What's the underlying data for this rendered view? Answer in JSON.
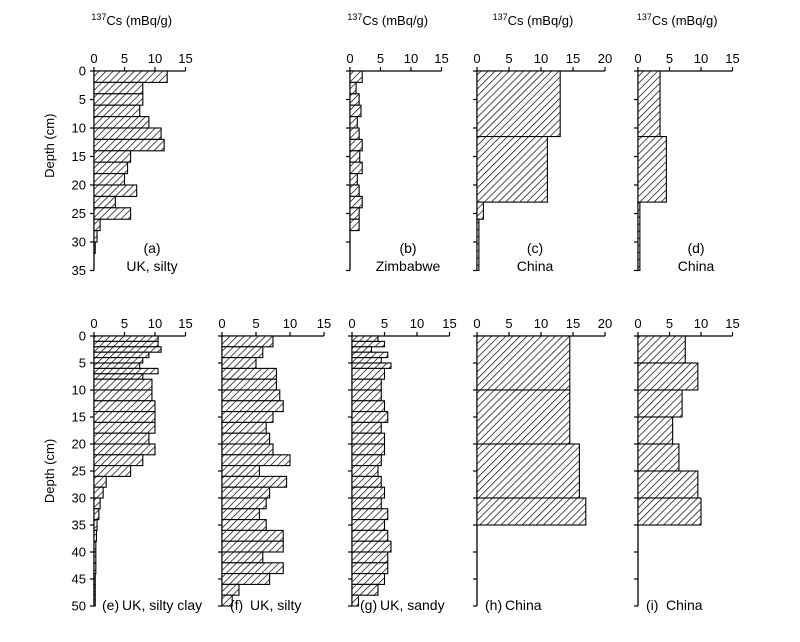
{
  "figure": {
    "colors": {
      "ink": "#000000",
      "fill_pattern": "diagonal-hatch",
      "background": "#ffffff"
    }
  },
  "chart_data": [
    {
      "id": "a",
      "type": "bar",
      "orientation": "horizontal",
      "panel_label": "(a)",
      "caption": "UK, silty",
      "xlabel_html": "137Cs (mBq/g)",
      "xlabel_sup": "137",
      "xlabel_rest": "Cs (mBq/g)",
      "ylabel": "Depth (cm)",
      "xlim": [
        0,
        15
      ],
      "xticks": [
        "0",
        "5",
        "10",
        "15"
      ],
      "ylim": [
        0,
        35
      ],
      "yticks": [
        "0",
        "5",
        "10",
        "15",
        "20",
        "25",
        "30",
        "35"
      ],
      "layers": [
        {
          "top": 0,
          "bottom": 2,
          "value": 12
        },
        {
          "top": 2,
          "bottom": 4,
          "value": 8
        },
        {
          "top": 4,
          "bottom": 6,
          "value": 8
        },
        {
          "top": 6,
          "bottom": 8,
          "value": 7.5
        },
        {
          "top": 8,
          "bottom": 10,
          "value": 9
        },
        {
          "top": 10,
          "bottom": 12,
          "value": 11
        },
        {
          "top": 12,
          "bottom": 14,
          "value": 11.5
        },
        {
          "top": 14,
          "bottom": 16,
          "value": 6
        },
        {
          "top": 16,
          "bottom": 18,
          "value": 5.5
        },
        {
          "top": 18,
          "bottom": 20,
          "value": 5
        },
        {
          "top": 20,
          "bottom": 22,
          "value": 7
        },
        {
          "top": 22,
          "bottom": 24,
          "value": 3.5
        },
        {
          "top": 24,
          "bottom": 26,
          "value": 6
        },
        {
          "top": 26,
          "bottom": 28,
          "value": 1
        },
        {
          "top": 28,
          "bottom": 30,
          "value": 0.5
        },
        {
          "top": 30,
          "bottom": 32,
          "value": 0.2
        }
      ]
    },
    {
      "id": "b",
      "type": "bar",
      "orientation": "horizontal",
      "panel_label": "(b)",
      "caption": "Zimbabwe",
      "xlabel_sup": "137",
      "xlabel_rest": "Cs (mBq/g)",
      "ylabel": "",
      "xlim": [
        0,
        15
      ],
      "xticks": [
        "0",
        "5",
        "10",
        "15"
      ],
      "ylim": [
        0,
        35
      ],
      "yticks": [],
      "layers": [
        {
          "top": 0,
          "bottom": 2,
          "value": 2
        },
        {
          "top": 2,
          "bottom": 4,
          "value": 1
        },
        {
          "top": 4,
          "bottom": 6,
          "value": 1.5
        },
        {
          "top": 6,
          "bottom": 8,
          "value": 1.8
        },
        {
          "top": 8,
          "bottom": 10,
          "value": 1.2
        },
        {
          "top": 10,
          "bottom": 12,
          "value": 1.5
        },
        {
          "top": 12,
          "bottom": 14,
          "value": 2
        },
        {
          "top": 14,
          "bottom": 16,
          "value": 1.6
        },
        {
          "top": 16,
          "bottom": 18,
          "value": 2
        },
        {
          "top": 18,
          "bottom": 20,
          "value": 1.2
        },
        {
          "top": 20,
          "bottom": 22,
          "value": 1.5
        },
        {
          "top": 22,
          "bottom": 24,
          "value": 2
        },
        {
          "top": 24,
          "bottom": 26,
          "value": 1.5
        },
        {
          "top": 26,
          "bottom": 28,
          "value": 1.5
        }
      ]
    },
    {
      "id": "c",
      "type": "bar",
      "orientation": "horizontal",
      "panel_label": "(c)",
      "caption": "China",
      "xlabel_sup": "137",
      "xlabel_rest": "Cs (mBq/g)",
      "ylabel": "",
      "xlim": [
        0,
        20
      ],
      "xticks": [
        "0",
        "5",
        "10",
        "15",
        "20"
      ],
      "ylim": [
        0,
        35
      ],
      "yticks": [],
      "layers": [
        {
          "top": 0,
          "bottom": 11.5,
          "value": 13
        },
        {
          "top": 11.5,
          "bottom": 23,
          "value": 11
        },
        {
          "top": 23,
          "bottom": 26,
          "value": 1
        },
        {
          "top": 26,
          "bottom": 35,
          "value": 0.3
        }
      ]
    },
    {
      "id": "d",
      "type": "bar",
      "orientation": "horizontal",
      "panel_label": "(d)",
      "caption": "China",
      "xlabel_sup": "137",
      "xlabel_rest": "Cs (mBq/g)",
      "ylabel": "",
      "xlim": [
        0,
        15
      ],
      "xticks": [
        "0",
        "5",
        "10",
        "15"
      ],
      "ylim": [
        0,
        35
      ],
      "yticks": [],
      "layers": [
        {
          "top": 0,
          "bottom": 11.5,
          "value": 3.5
        },
        {
          "top": 11.5,
          "bottom": 23,
          "value": 4.5
        },
        {
          "top": 23,
          "bottom": 35,
          "value": 0.3
        }
      ]
    },
    {
      "id": "e",
      "type": "bar",
      "orientation": "horizontal",
      "panel_label": "(e)",
      "caption": "UK, silty clay",
      "xlabel_sup": "",
      "xlabel_rest": "",
      "ylabel": "Depth (cm)",
      "xlim": [
        0,
        15
      ],
      "xticks": [
        "0",
        "5",
        "10",
        "15"
      ],
      "ylim": [
        0,
        50
      ],
      "yticks": [
        "0",
        "5",
        "10",
        "15",
        "20",
        "25",
        "30",
        "35",
        "40",
        "45",
        "50"
      ],
      "layers": [
        {
          "top": 0,
          "bottom": 1,
          "value": 10.5
        },
        {
          "top": 1,
          "bottom": 2,
          "value": 10.5
        },
        {
          "top": 2,
          "bottom": 3,
          "value": 11
        },
        {
          "top": 3,
          "bottom": 4,
          "value": 9
        },
        {
          "top": 4,
          "bottom": 5,
          "value": 8
        },
        {
          "top": 5,
          "bottom": 6,
          "value": 7.5
        },
        {
          "top": 6,
          "bottom": 7,
          "value": 10.5
        },
        {
          "top": 7,
          "bottom": 8,
          "value": 8
        },
        {
          "top": 8,
          "bottom": 10,
          "value": 9.5
        },
        {
          "top": 10,
          "bottom": 12,
          "value": 9.5
        },
        {
          "top": 12,
          "bottom": 14,
          "value": 10
        },
        {
          "top": 14,
          "bottom": 16,
          "value": 10
        },
        {
          "top": 16,
          "bottom": 18,
          "value": 10
        },
        {
          "top": 18,
          "bottom": 20,
          "value": 9
        },
        {
          "top": 20,
          "bottom": 22,
          "value": 10
        },
        {
          "top": 22,
          "bottom": 24,
          "value": 8
        },
        {
          "top": 24,
          "bottom": 26,
          "value": 6
        },
        {
          "top": 26,
          "bottom": 28,
          "value": 2
        },
        {
          "top": 28,
          "bottom": 30,
          "value": 1.5
        },
        {
          "top": 30,
          "bottom": 32,
          "value": 1
        },
        {
          "top": 32,
          "bottom": 34,
          "value": 0.8
        },
        {
          "top": 34,
          "bottom": 36,
          "value": 0.5
        },
        {
          "top": 36,
          "bottom": 38,
          "value": 0.4
        },
        {
          "top": 38,
          "bottom": 40,
          "value": 0.3
        },
        {
          "top": 40,
          "bottom": 42,
          "value": 0.3
        },
        {
          "top": 42,
          "bottom": 44,
          "value": 0.3
        },
        {
          "top": 44,
          "bottom": 46,
          "value": 0.2
        },
        {
          "top": 46,
          "bottom": 48,
          "value": 0.2
        },
        {
          "top": 48,
          "bottom": 50,
          "value": 0.2
        }
      ]
    },
    {
      "id": "f",
      "type": "bar",
      "orientation": "horizontal",
      "panel_label": "(f)",
      "caption": "UK, silty",
      "xlabel_sup": "",
      "xlabel_rest": "",
      "ylabel": "",
      "xlim": [
        0,
        15
      ],
      "xticks": [
        "0",
        "5",
        "10",
        "15"
      ],
      "ylim": [
        0,
        50
      ],
      "yticks": [],
      "layers": [
        {
          "top": 0,
          "bottom": 2,
          "value": 7.5
        },
        {
          "top": 2,
          "bottom": 4,
          "value": 6
        },
        {
          "top": 4,
          "bottom": 6,
          "value": 5
        },
        {
          "top": 6,
          "bottom": 8,
          "value": 8
        },
        {
          "top": 8,
          "bottom": 10,
          "value": 8
        },
        {
          "top": 10,
          "bottom": 12,
          "value": 8.5
        },
        {
          "top": 12,
          "bottom": 14,
          "value": 9
        },
        {
          "top": 14,
          "bottom": 16,
          "value": 7.5
        },
        {
          "top": 16,
          "bottom": 18,
          "value": 6.5
        },
        {
          "top": 18,
          "bottom": 20,
          "value": 7
        },
        {
          "top": 20,
          "bottom": 22,
          "value": 7.5
        },
        {
          "top": 22,
          "bottom": 24,
          "value": 10
        },
        {
          "top": 24,
          "bottom": 26,
          "value": 5.5
        },
        {
          "top": 26,
          "bottom": 28,
          "value": 9.5
        },
        {
          "top": 28,
          "bottom": 30,
          "value": 7
        },
        {
          "top": 30,
          "bottom": 32,
          "value": 6.5
        },
        {
          "top": 32,
          "bottom": 34,
          "value": 5.5
        },
        {
          "top": 34,
          "bottom": 36,
          "value": 6.5
        },
        {
          "top": 36,
          "bottom": 38,
          "value": 9
        },
        {
          "top": 38,
          "bottom": 40,
          "value": 9
        },
        {
          "top": 40,
          "bottom": 42,
          "value": 6
        },
        {
          "top": 42,
          "bottom": 44,
          "value": 9
        },
        {
          "top": 44,
          "bottom": 46,
          "value": 7
        },
        {
          "top": 46,
          "bottom": 48,
          "value": 2.5
        },
        {
          "top": 48,
          "bottom": 50,
          "value": 1.5
        }
      ]
    },
    {
      "id": "g",
      "type": "bar",
      "orientation": "horizontal",
      "panel_label": "(g)",
      "caption": "UK, sandy",
      "xlabel_sup": "",
      "xlabel_rest": "",
      "ylabel": "",
      "xlim": [
        0,
        15
      ],
      "xticks": [
        "0",
        "5",
        "10",
        "15"
      ],
      "ylim": [
        0,
        50
      ],
      "yticks": [],
      "layers": [
        {
          "top": 0,
          "bottom": 1,
          "value": 4
        },
        {
          "top": 1,
          "bottom": 2,
          "value": 5
        },
        {
          "top": 2,
          "bottom": 3,
          "value": 3
        },
        {
          "top": 3,
          "bottom": 4,
          "value": 5.5
        },
        {
          "top": 4,
          "bottom": 5,
          "value": 4.5
        },
        {
          "top": 5,
          "bottom": 6,
          "value": 6
        },
        {
          "top": 6,
          "bottom": 8,
          "value": 5
        },
        {
          "top": 8,
          "bottom": 10,
          "value": 4.5
        },
        {
          "top": 10,
          "bottom": 12,
          "value": 4.5
        },
        {
          "top": 12,
          "bottom": 14,
          "value": 5
        },
        {
          "top": 14,
          "bottom": 16,
          "value": 5.5
        },
        {
          "top": 16,
          "bottom": 18,
          "value": 4.5
        },
        {
          "top": 18,
          "bottom": 20,
          "value": 5
        },
        {
          "top": 20,
          "bottom": 22,
          "value": 5
        },
        {
          "top": 22,
          "bottom": 24,
          "value": 4.5
        },
        {
          "top": 24,
          "bottom": 26,
          "value": 4
        },
        {
          "top": 26,
          "bottom": 28,
          "value": 4.5
        },
        {
          "top": 28,
          "bottom": 30,
          "value": 5
        },
        {
          "top": 30,
          "bottom": 32,
          "value": 4.5
        },
        {
          "top": 32,
          "bottom": 34,
          "value": 5.5
        },
        {
          "top": 34,
          "bottom": 36,
          "value": 5
        },
        {
          "top": 36,
          "bottom": 38,
          "value": 5.5
        },
        {
          "top": 38,
          "bottom": 40,
          "value": 6
        },
        {
          "top": 40,
          "bottom": 42,
          "value": 5.5
        },
        {
          "top": 42,
          "bottom": 44,
          "value": 5.5
        },
        {
          "top": 44,
          "bottom": 46,
          "value": 5
        },
        {
          "top": 46,
          "bottom": 48,
          "value": 4
        },
        {
          "top": 48,
          "bottom": 50,
          "value": 1
        }
      ]
    },
    {
      "id": "h",
      "type": "bar",
      "orientation": "horizontal",
      "panel_label": "",
      "caption": "China",
      "xlabel_sup": "",
      "xlabel_rest": "",
      "ylabel": "",
      "xlim": [
        0,
        20
      ],
      "xticks": [
        "0",
        "5",
        "10",
        "15",
        "20"
      ],
      "ylim": [
        0,
        50
      ],
      "yticks": [],
      "layers": [
        {
          "top": 0,
          "bottom": 10,
          "value": 14.5
        },
        {
          "top": 10,
          "bottom": 20,
          "value": 14.5
        },
        {
          "top": 20,
          "bottom": 30,
          "value": 16
        },
        {
          "top": 30,
          "bottom": 35,
          "value": 17
        }
      ]
    },
    {
      "id": "i",
      "type": "bar",
      "orientation": "horizontal",
      "panel_label": "",
      "caption": "China",
      "xlabel_sup": "",
      "xlabel_rest": "",
      "ylabel": "",
      "xlim": [
        0,
        15
      ],
      "xticks": [
        "0",
        "5",
        "10",
        "15"
      ],
      "ylim": [
        0,
        50
      ],
      "yticks": [],
      "layers": [
        {
          "top": 0,
          "bottom": 5,
          "value": 7.5
        },
        {
          "top": 5,
          "bottom": 10,
          "value": 9.5
        },
        {
          "top": 10,
          "bottom": 15,
          "value": 7
        },
        {
          "top": 15,
          "bottom": 20,
          "value": 5.5
        },
        {
          "top": 20,
          "bottom": 25,
          "value": 6.5
        },
        {
          "top": 25,
          "bottom": 30,
          "value": 9.5
        },
        {
          "top": 30,
          "bottom": 35,
          "value": 10
        }
      ]
    }
  ],
  "panel_labels_bottom": {
    "e": "(e)",
    "f": "(f)",
    "g": "(g)",
    "h": "(h)",
    "i": "(i)"
  }
}
